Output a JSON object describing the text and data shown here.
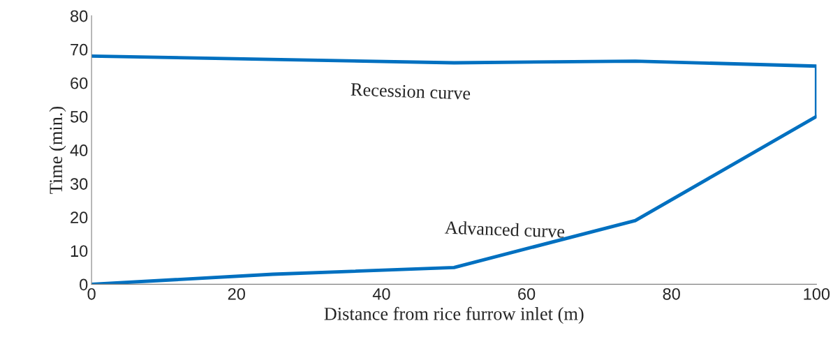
{
  "chart_data": {
    "type": "line",
    "xlabel": "Distance from rice furrow inlet (m)",
    "ylabel": "Time (min.)",
    "series": [
      {
        "name": "Advanced curve",
        "color": "#0070c0",
        "x": [
          0,
          25,
          50,
          75,
          100
        ],
        "values": [
          0,
          3,
          5,
          19,
          50
        ]
      },
      {
        "name": "Recession curve",
        "color": "#0070c0",
        "x": [
          0,
          50,
          75,
          100,
          100
        ],
        "values": [
          68,
          66,
          66.5,
          65,
          50
        ]
      }
    ],
    "xlim": [
      0,
      100
    ],
    "ylim": [
      0,
      80
    ],
    "xticks": [
      0,
      20,
      40,
      60,
      80,
      100
    ],
    "yticks": [
      0,
      10,
      20,
      30,
      40,
      50,
      60,
      70,
      80
    ],
    "grid": false,
    "legend": false,
    "marker": "none",
    "line_style": "solid"
  }
}
